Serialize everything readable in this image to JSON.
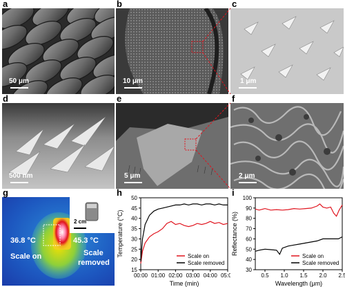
{
  "panels": {
    "a": {
      "letter": "a",
      "scale": "50 μm"
    },
    "b": {
      "letter": "b",
      "scale": "10 μm"
    },
    "c": {
      "letter": "c",
      "scale": "1 μm"
    },
    "d": {
      "letter": "d",
      "scale": "500 nm"
    },
    "e": {
      "letter": "e",
      "scale": "5 μm"
    },
    "f": {
      "letter": "f",
      "scale": "2 μm"
    },
    "g": {
      "letter": "g",
      "inset_scale": "2 cm",
      "temp_on": "36.8 °C",
      "temp_removed": "45.3 °C",
      "label_on": "Scale on",
      "label_removed_1": "Scale",
      "label_removed_2": "removed"
    },
    "h": {
      "letter": "h"
    },
    "i": {
      "letter": "i"
    }
  },
  "chart_data": [
    {
      "type": "line",
      "xlabel": "Time (min)",
      "ylabel": "Temperature (°C)",
      "xticks": [
        "00:00",
        "01:00",
        "02:00",
        "03:00",
        "04:00",
        "05:00"
      ],
      "xlim": [
        0,
        5
      ],
      "ylim": [
        15,
        50
      ],
      "yticks": [
        15,
        20,
        25,
        30,
        35,
        40,
        45,
        50
      ],
      "legend_position": "bottom-right",
      "series": [
        {
          "name": "Scale on",
          "color": "#e0141e",
          "x": [
            0,
            0.1,
            0.25,
            0.5,
            0.75,
            1.0,
            1.25,
            1.5,
            1.75,
            2.0,
            2.25,
            2.5,
            2.75,
            3.0,
            3.25,
            3.5,
            3.75,
            4.0,
            4.25,
            4.5,
            4.75,
            5.0
          ],
          "y": [
            18,
            24,
            28,
            31,
            32.5,
            33.5,
            35,
            37.5,
            38.5,
            37,
            37.5,
            36.5,
            36,
            36.5,
            37.5,
            37,
            37.5,
            38.5,
            37.5,
            38,
            37,
            37.5
          ]
        },
        {
          "name": "Scale removed",
          "color": "#000000",
          "x": [
            0,
            0.1,
            0.25,
            0.5,
            0.75,
            1.0,
            1.25,
            1.5,
            1.75,
            2.0,
            2.25,
            2.5,
            2.75,
            3.0,
            3.25,
            3.5,
            3.75,
            4.0,
            4.25,
            4.5,
            4.75,
            5.0
          ],
          "y": [
            19,
            30,
            37,
            41.5,
            43.5,
            44.5,
            45,
            45.5,
            46,
            46.5,
            46.5,
            47,
            46.5,
            47,
            47,
            46.5,
            47,
            47,
            46.5,
            47,
            46.5,
            46.5
          ]
        }
      ]
    },
    {
      "type": "line",
      "xlabel": "Wavelength (μm)",
      "ylabel": "Reflectance (%)",
      "xlim": [
        0.25,
        2.5
      ],
      "ylim": [
        30,
        100
      ],
      "xticks": [
        0.5,
        1.0,
        1.5,
        2.0,
        2.5
      ],
      "yticks": [
        30,
        40,
        50,
        60,
        70,
        80,
        90,
        100
      ],
      "legend_position": "bottom-right",
      "series": [
        {
          "name": "Scale on",
          "color": "#e0141e",
          "x": [
            0.25,
            0.35,
            0.5,
            0.65,
            0.8,
            0.95,
            1.1,
            1.25,
            1.4,
            1.55,
            1.7,
            1.85,
            1.92,
            2.0,
            2.1,
            2.2,
            2.28,
            2.35,
            2.42,
            2.5
          ],
          "y": [
            89,
            88,
            89.5,
            88,
            88.5,
            88,
            88.5,
            89.5,
            89,
            89.5,
            90,
            92,
            94,
            91,
            90,
            91,
            85,
            82,
            88,
            93
          ]
        },
        {
          "name": "Scale removed",
          "color": "#000000",
          "x": [
            0.25,
            0.35,
            0.5,
            0.65,
            0.8,
            0.88,
            0.95,
            1.1,
            1.25,
            1.4,
            1.55,
            1.7,
            1.85,
            2.0,
            2.1,
            2.2,
            2.3,
            2.4,
            2.5
          ],
          "y": [
            48,
            49,
            50,
            49.5,
            49,
            45,
            51,
            53,
            54,
            55,
            56,
            57,
            58,
            60,
            60,
            60,
            60,
            60,
            62
          ]
        }
      ]
    }
  ]
}
